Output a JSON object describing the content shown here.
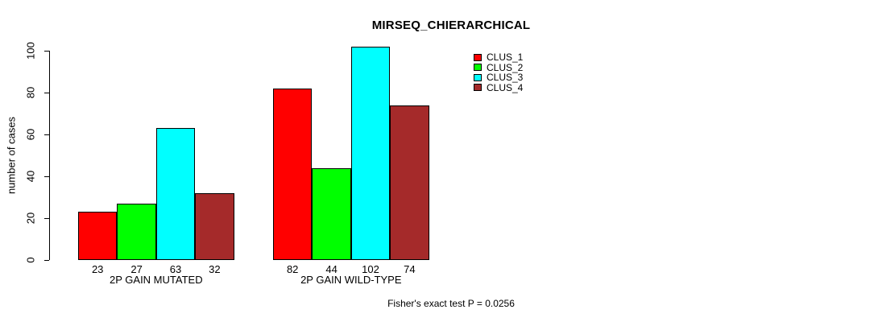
{
  "chart_data": {
    "type": "bar",
    "title": "MIRSEQ_CHIERARCHICAL",
    "ylabel": "number of cases",
    "xlabel": "",
    "categories": [
      "2P GAIN MUTATED",
      "2P GAIN WILD-TYPE"
    ],
    "series": [
      {
        "name": "CLUS_1",
        "color": "#ff0000",
        "values": [
          23,
          82
        ]
      },
      {
        "name": "CLUS_2",
        "color": "#00ff00",
        "values": [
          27,
          44
        ]
      },
      {
        "name": "CLUS_3",
        "color": "#00ffff",
        "values": [
          63,
          102
        ]
      },
      {
        "name": "CLUS_4",
        "color": "#a52a2a",
        "values": [
          32,
          74
        ]
      }
    ],
    "yticks": [
      0,
      20,
      40,
      60,
      80,
      100
    ],
    "ylim": [
      0,
      104
    ],
    "grid": false,
    "legend_position": "top-right-of-plot",
    "legend_entries": [
      "CLUS_1",
      "CLUS_2",
      "CLUS_3",
      "CLUS_4"
    ],
    "bar_value_labels_shown": true,
    "annotation": "Fisher's exact test P = 0.0256",
    "axis_color": "#000000",
    "background_color": "#ffffff"
  }
}
